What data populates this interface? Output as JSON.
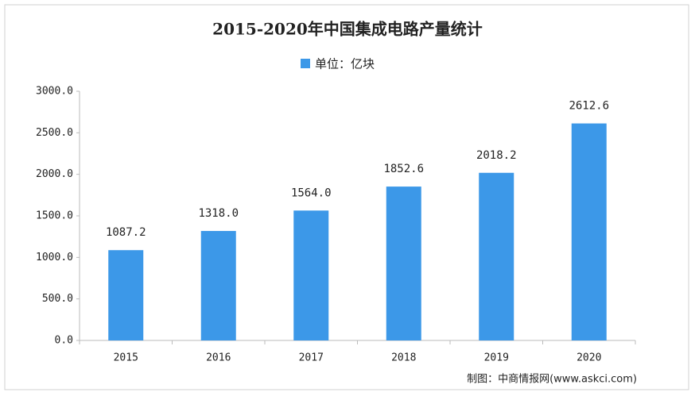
{
  "chart_data": {
    "type": "bar",
    "title": "2015-2020年中国集成电路产量统计",
    "categories": [
      "2015",
      "2016",
      "2017",
      "2018",
      "2019",
      "2020"
    ],
    "series": [
      {
        "name": "单位：亿块",
        "color": "#3c98e8",
        "values": [
          1087.2,
          1318.0,
          1564.0,
          1852.6,
          2018.2,
          2612.6
        ],
        "value_labels": [
          "1087.2",
          "1318.0",
          "1564.0",
          "1852.6",
          "2018.2",
          "2612.6"
        ]
      }
    ],
    "ylim": [
      0,
      3000
    ],
    "yticks": [
      {
        "value": 0,
        "label": "0.0"
      },
      {
        "value": 500,
        "label": "500.0"
      },
      {
        "value": 1000,
        "label": "1000.0"
      },
      {
        "value": 1500,
        "label": "1500.0"
      },
      {
        "value": 2000,
        "label": "2000.0"
      },
      {
        "value": 2500,
        "label": "2500.0"
      },
      {
        "value": 3000,
        "label": "3000.0"
      }
    ],
    "grid": false,
    "source": "制图：中商情报网(www.askci.com)"
  }
}
